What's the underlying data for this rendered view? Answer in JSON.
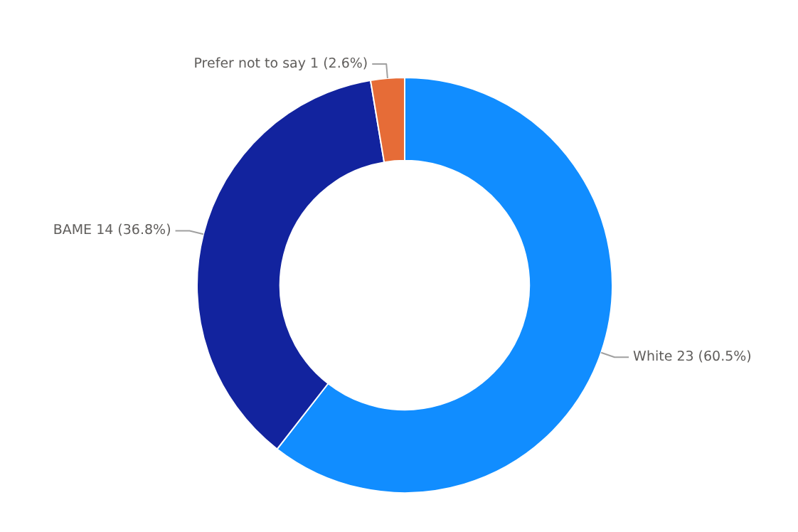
{
  "chart_data": {
    "type": "donut",
    "categories": [
      "White",
      "BAME",
      "Prefer not to say"
    ],
    "values": [
      23,
      14,
      1
    ],
    "colors": [
      "#118dff",
      "#12239e",
      "#e66c37"
    ],
    "value_labels": [
      "23 (60.5%)",
      "14 (36.8%)",
      "1 (2.6%)"
    ],
    "legend": false
  }
}
